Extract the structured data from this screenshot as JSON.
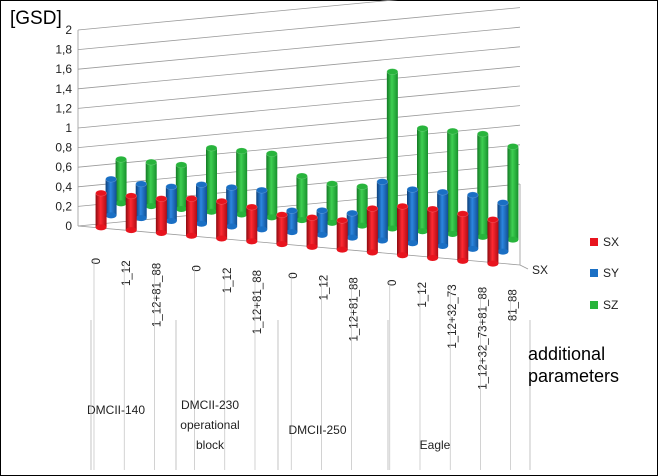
{
  "chart_data": {
    "type": "bar",
    "title": "",
    "ylabel": "[GSD]",
    "xlabel": "additional parameters",
    "depth_label": "SX",
    "ylim": [
      0,
      2
    ],
    "yticks": [
      "0",
      "0,2",
      "0,4",
      "0,6",
      "0,8",
      "1",
      "1,2",
      "1,4",
      "1,6",
      "1,8",
      "2"
    ],
    "groups": [
      {
        "name": "DMCII-140",
        "categories": [
          "0",
          "1_12",
          "1_12+81_88"
        ]
      },
      {
        "name": "DMCII-230 operational block",
        "categories": [
          "0",
          "1_12",
          "1_12+81_88"
        ]
      },
      {
        "name": "DMCII-250",
        "categories": [
          "0",
          "1_12",
          "1_12+81_88"
        ]
      },
      {
        "name": "Eagle",
        "categories": [
          "0",
          "1_12",
          "1_12+32_73",
          "1_12+32_73+81_88",
          "81_88"
        ]
      }
    ],
    "categories": [
      "0",
      "1_12",
      "1_12+81_88",
      "0",
      "1_12",
      "1_12+81_88",
      "0",
      "1_12",
      "1_12+81_88",
      "0",
      "1_12",
      "1_12+32_73",
      "1_12+32_73+81_88",
      "81_88"
    ],
    "series": [
      {
        "name": "SX",
        "color": "#e8141e",
        "values": [
          0.35,
          0.35,
          0.35,
          0.38,
          0.38,
          0.35,
          0.3,
          0.3,
          0.3,
          0.45,
          0.5,
          0.5,
          0.48,
          0.45
        ]
      },
      {
        "name": "SY",
        "color": "#1a6fc4",
        "values": [
          0.37,
          0.35,
          0.35,
          0.4,
          0.4,
          0.4,
          0.22,
          0.25,
          0.25,
          0.6,
          0.55,
          0.55,
          0.55,
          0.5
        ]
      },
      {
        "name": "SZ",
        "color": "#28b43c",
        "values": [
          0.45,
          0.45,
          0.45,
          0.65,
          0.65,
          0.65,
          0.45,
          0.4,
          0.4,
          1.6,
          1.05,
          1.05,
          1.05,
          0.95
        ]
      }
    ],
    "legend": "right",
    "grid": true
  }
}
